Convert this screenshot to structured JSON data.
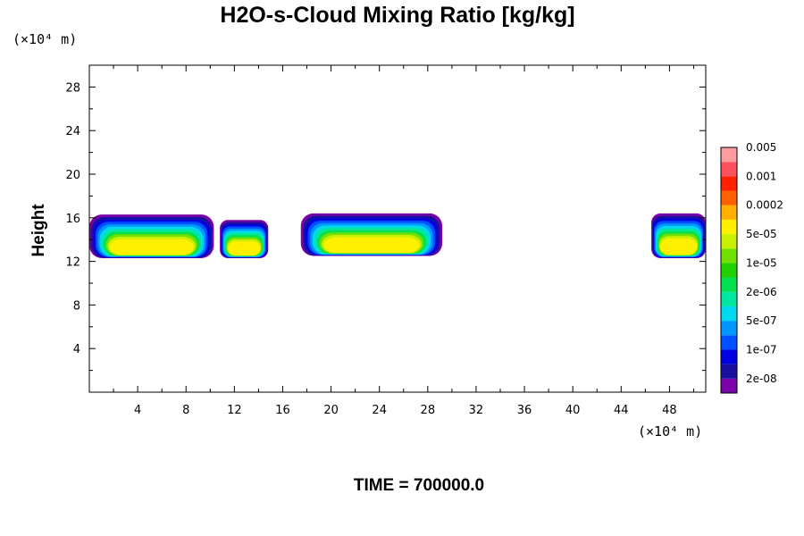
{
  "chart_data": {
    "type": "contour",
    "title": "H2O-s-Cloud Mixing Ratio [kg/kg]",
    "ylabel": "Height",
    "y_unit_label": "(×10⁴ m)",
    "x_unit_label": "(×10⁴ m)",
    "xlim": [
      0,
      51
    ],
    "ylim": [
      0,
      30
    ],
    "x_ticks": [
      "4",
      "8",
      "12",
      "16",
      "20",
      "24",
      "28",
      "32",
      "36",
      "40",
      "44",
      "48"
    ],
    "y_ticks": [
      "4",
      "8",
      "12",
      "16",
      "20",
      "24",
      "28"
    ],
    "time_label": "TIME = 700000.0",
    "colorbar": {
      "colors": [
        "#7a00a8",
        "#1a10a0",
        "#0000e0",
        "#0050ff",
        "#0096ff",
        "#00d8f0",
        "#00e8a0",
        "#00e050",
        "#20d000",
        "#70e000",
        "#c8f000",
        "#fff000",
        "#ffb000",
        "#ff6000",
        "#ff2000",
        "#ff5060",
        "#ff9ca0"
      ],
      "labels": [
        "2e-08",
        "1e-07",
        "5e-07",
        "2e-06",
        "1e-05",
        "5e-05",
        "0.0002",
        "0.001",
        "0.005"
      ]
    },
    "cloud_regions": [
      {
        "x0": 0,
        "x1": 10.3,
        "bottom": 12.3,
        "top": 16.3
      },
      {
        "x0": 10.8,
        "x1": 14.8,
        "bottom": 12.3,
        "top": 15.8
      },
      {
        "x0": 17.5,
        "x1": 29.2,
        "bottom": 12.5,
        "top": 16.4
      },
      {
        "x0": 46.5,
        "x1": 51,
        "bottom": 12.3,
        "top": 16.4
      }
    ]
  }
}
